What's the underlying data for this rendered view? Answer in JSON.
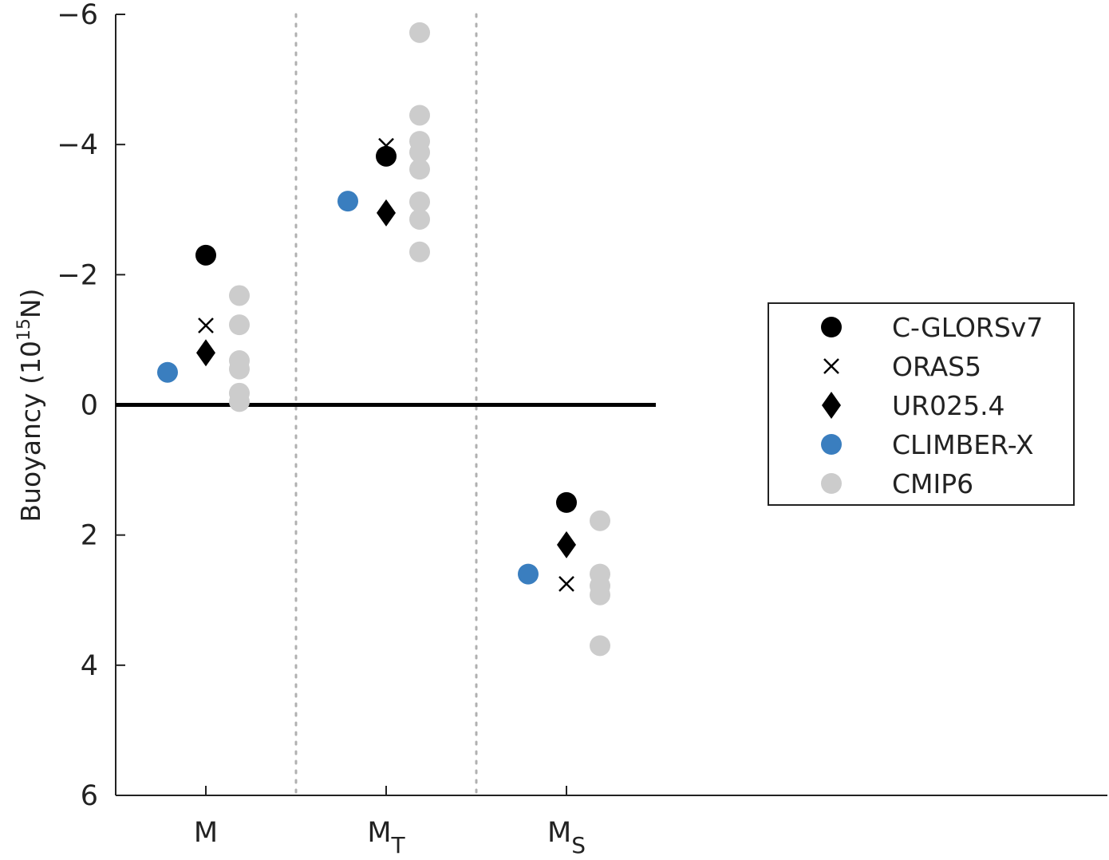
{
  "chart_data": {
    "type": "scatter",
    "ylabel": "Buoyancy (10",
    "ylabel_superscript": "15",
    "ylabel_suffix": "N)",
    "y_axis_reversed": true,
    "ylim": [
      -6,
      6
    ],
    "yticks": [
      -6,
      -4,
      -2,
      0,
      2,
      4,
      6
    ],
    "ytick_labels": [
      "−6",
      "−4",
      "−2",
      "0",
      "2",
      "4",
      "6"
    ],
    "categories": [
      {
        "main": "M",
        "sub": ""
      },
      {
        "main": "M",
        "sub": "T"
      },
      {
        "main": "M",
        "sub": "S"
      }
    ],
    "zero_line": true,
    "category_separators": "dotted",
    "grid": false,
    "legend_position": "right",
    "series": [
      {
        "name": "C-GLORSv7",
        "marker": "circle",
        "color": "#000000",
        "values": [
          -2.3,
          -3.82,
          1.5
        ]
      },
      {
        "name": "ORAS5",
        "marker": "x",
        "color": "#000000",
        "values": [
          -1.22,
          -3.98,
          2.75
        ]
      },
      {
        "name": "UR025.4",
        "marker": "diamond",
        "color": "#000000",
        "values": [
          -0.8,
          -2.95,
          2.15
        ]
      },
      {
        "name": "CLIMBER-X",
        "marker": "circle",
        "color": "#3a7ebf",
        "values": [
          -0.5,
          -3.13,
          2.6
        ]
      },
      {
        "name": "CMIP6",
        "marker": "circle",
        "color": "#cccccc",
        "values": [
          [
            -1.68,
            -1.23,
            -0.68,
            -0.55,
            -0.18,
            -0.05
          ],
          [
            -5.72,
            -4.45,
            -4.05,
            -3.88,
            -3.62,
            -3.12,
            -2.85,
            -2.35
          ],
          [
            1.78,
            2.6,
            2.78,
            2.92,
            3.7
          ]
        ]
      }
    ]
  }
}
